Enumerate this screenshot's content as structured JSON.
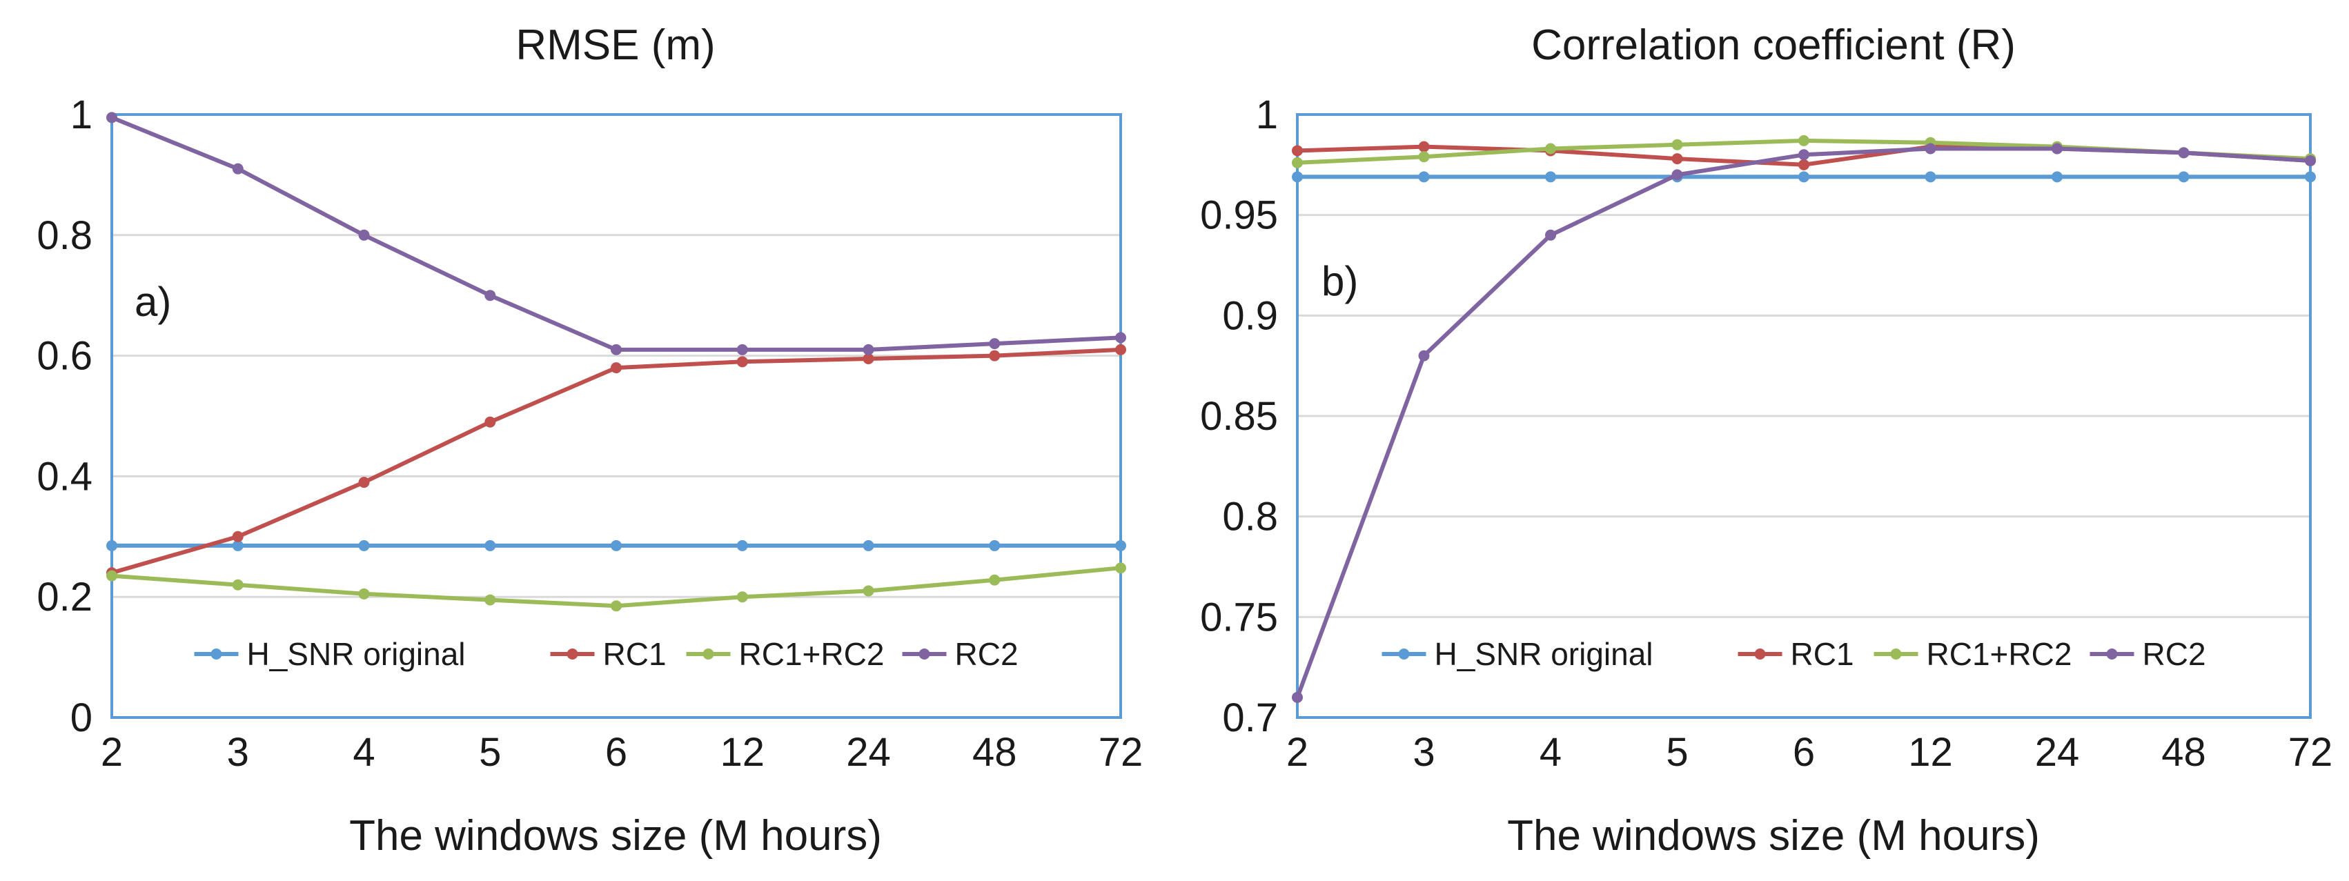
{
  "chart_data": [
    {
      "type": "line",
      "title": "RMSE (m)",
      "panel_label": "a)",
      "xlabel": "The windows size (M hours)",
      "ylabel": "",
      "categories": [
        "2",
        "3",
        "4",
        "5",
        "6",
        "12",
        "24",
        "48",
        "72"
      ],
      "ylim": [
        0,
        1
      ],
      "yticks": [
        0,
        0.2,
        0.4,
        0.6,
        0.8,
        1
      ],
      "ytick_labels": [
        "0",
        "0.2",
        "0.4",
        "0.6",
        "0.8",
        "1"
      ],
      "grid": true,
      "legend": "bottom-center",
      "series": [
        {
          "name": "H_SNR original",
          "color": "#5B9BD5",
          "values": [
            0.285,
            0.285,
            0.285,
            0.285,
            0.285,
            0.285,
            0.285,
            0.285,
            0.285
          ]
        },
        {
          "name": "RC1",
          "color": "#C0504D",
          "values": [
            0.24,
            0.3,
            0.39,
            0.49,
            0.58,
            0.59,
            0.595,
            0.6,
            0.61
          ]
        },
        {
          "name": "RC1+RC2",
          "color": "#9BBB59",
          "values": [
            0.235,
            0.22,
            0.205,
            0.195,
            0.185,
            0.2,
            0.21,
            0.228,
            0.248
          ]
        },
        {
          "name": "RC2",
          "color": "#8064A2",
          "values": [
            0.995,
            0.91,
            0.8,
            0.7,
            0.61,
            0.61,
            0.61,
            0.62,
            0.63
          ]
        }
      ]
    },
    {
      "type": "line",
      "title": "Correlation coefficient (R)",
      "panel_label": "b)",
      "xlabel": "The windows size (M hours)",
      "ylabel": "",
      "categories": [
        "2",
        "3",
        "4",
        "5",
        "6",
        "12",
        "24",
        "48",
        "72"
      ],
      "ylim": [
        0.7,
        1
      ],
      "yticks": [
        0.7,
        0.75,
        0.8,
        0.85,
        0.9,
        0.95,
        1
      ],
      "ytick_labels": [
        "0.7",
        "0.75",
        "0.8",
        "0.85",
        "0.9",
        "0.95",
        "1"
      ],
      "grid": true,
      "legend": "bottom-center",
      "series": [
        {
          "name": "H_SNR original",
          "color": "#5B9BD5",
          "values": [
            0.969,
            0.969,
            0.969,
            0.969,
            0.969,
            0.969,
            0.969,
            0.969,
            0.969
          ]
        },
        {
          "name": "RC1",
          "color": "#C0504D",
          "values": [
            0.982,
            0.984,
            0.982,
            0.978,
            0.975,
            0.984,
            0.983,
            0.981,
            0.977
          ]
        },
        {
          "name": "RC1+RC2",
          "color": "#9BBB59",
          "values": [
            0.976,
            0.979,
            0.983,
            0.985,
            0.987,
            0.986,
            0.984,
            0.981,
            0.978
          ]
        },
        {
          "name": "RC2",
          "color": "#8064A2",
          "values": [
            0.71,
            0.88,
            0.94,
            0.97,
            0.98,
            0.983,
            0.983,
            0.981,
            0.977
          ]
        }
      ]
    }
  ]
}
